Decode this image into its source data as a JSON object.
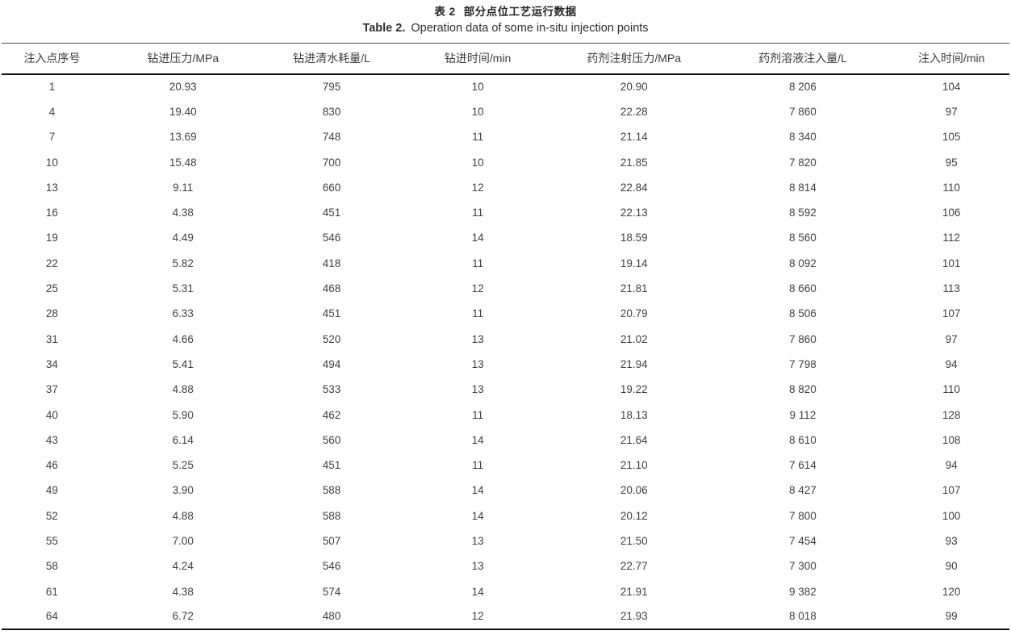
{
  "table": {
    "caption_zh_label": "表 2",
    "caption_zh_text": "部分点位工艺运行数据",
    "caption_en_label": "Table 2.",
    "caption_en_text": "Operation data of some in-situ injection points",
    "columns": [
      "注入点序号",
      "钻进压力/MPa",
      "钻进清水耗量/L",
      "钻进时间/min",
      "药剂注射压力/MPa",
      "药剂溶液注入量/L",
      "注入时间/min"
    ],
    "rows": [
      [
        "1",
        "20.93",
        "795",
        "10",
        "20.90",
        "8 206",
        "104"
      ],
      [
        "4",
        "19.40",
        "830",
        "10",
        "22.28",
        "7 860",
        "97"
      ],
      [
        "7",
        "13.69",
        "748",
        "11",
        "21.14",
        "8 340",
        "105"
      ],
      [
        "10",
        "15.48",
        "700",
        "10",
        "21.85",
        "7 820",
        "95"
      ],
      [
        "13",
        "9.11",
        "660",
        "12",
        "22.84",
        "8 814",
        "110"
      ],
      [
        "16",
        "4.38",
        "451",
        "11",
        "22.13",
        "8 592",
        "106"
      ],
      [
        "19",
        "4.49",
        "546",
        "14",
        "18.59",
        "8 560",
        "112"
      ],
      [
        "22",
        "5.82",
        "418",
        "11",
        "19.14",
        "8 092",
        "101"
      ],
      [
        "25",
        "5.31",
        "468",
        "12",
        "21.81",
        "8 660",
        "113"
      ],
      [
        "28",
        "6.33",
        "451",
        "11",
        "20.79",
        "8 506",
        "107"
      ],
      [
        "31",
        "4.66",
        "520",
        "13",
        "21.02",
        "7 860",
        "97"
      ],
      [
        "34",
        "5.41",
        "494",
        "13",
        "21.94",
        "7 798",
        "94"
      ],
      [
        "37",
        "4.88",
        "533",
        "13",
        "19.22",
        "8 820",
        "110"
      ],
      [
        "40",
        "5.90",
        "462",
        "11",
        "18.13",
        "9 112",
        "128"
      ],
      [
        "43",
        "6.14",
        "560",
        "14",
        "21.64",
        "8 610",
        "108"
      ],
      [
        "46",
        "5.25",
        "451",
        "11",
        "21.10",
        "7 614",
        "94"
      ],
      [
        "49",
        "3.90",
        "588",
        "14",
        "20.06",
        "8 427",
        "107"
      ],
      [
        "52",
        "4.88",
        "588",
        "14",
        "20.12",
        "7 800",
        "100"
      ],
      [
        "55",
        "7.00",
        "507",
        "13",
        "21.50",
        "7 454",
        "93"
      ],
      [
        "58",
        "4.24",
        "546",
        "13",
        "22.77",
        "7 300",
        "90"
      ],
      [
        "61",
        "4.38",
        "574",
        "14",
        "21.91",
        "9 382",
        "120"
      ],
      [
        "64",
        "6.72",
        "480",
        "12",
        "21.93",
        "8 018",
        "99"
      ]
    ],
    "colors": {
      "text": "#404040",
      "heavy_rule": "#111111",
      "light_rule": "#4d4d4d",
      "background": "#ffffff"
    }
  }
}
